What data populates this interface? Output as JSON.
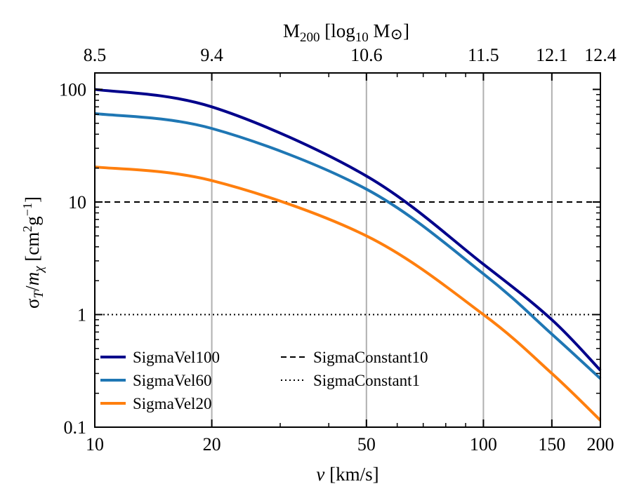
{
  "chart_data": {
    "type": "line",
    "x_scale": "log",
    "y_scale": "log",
    "xlim": [
      10,
      200
    ],
    "ylim": [
      0.1,
      140
    ],
    "xlabel": "v [km/s]",
    "ylabel": "σT/mχ [cm²g⁻¹]",
    "top_axis_label": "M200 [log10 M⊙]",
    "x_ticks": [
      {
        "value": 10,
        "label": "10"
      },
      {
        "value": 20,
        "label": "20"
      },
      {
        "value": 50,
        "label": "50"
      },
      {
        "value": 100,
        "label": "100"
      },
      {
        "value": 150,
        "label": "150"
      },
      {
        "value": 200,
        "label": "200"
      }
    ],
    "y_ticks": [
      {
        "value": 0.1,
        "label": "0.1"
      },
      {
        "value": 1,
        "label": "1"
      },
      {
        "value": 10,
        "label": "10"
      },
      {
        "value": 100,
        "label": "100"
      }
    ],
    "top_ticks": [
      {
        "x_value": 10,
        "label": "8.5"
      },
      {
        "x_value": 20,
        "label": "9.4"
      },
      {
        "x_value": 50,
        "label": "10.6"
      },
      {
        "x_value": 100,
        "label": "11.5"
      },
      {
        "x_value": 150,
        "label": "12.1"
      },
      {
        "x_value": 200,
        "label": "12.4"
      }
    ],
    "vertical_gridlines_at": [
      20,
      50,
      100,
      150
    ],
    "series": [
      {
        "name": "SigmaVel100",
        "color": "#00008b",
        "style": "solid",
        "x": [
          10,
          20,
          50,
          100,
          150,
          200
        ],
        "y": [
          100,
          70,
          17,
          2.8,
          0.9,
          0.32
        ]
      },
      {
        "name": "SigmaVel60",
        "color": "#1f77b4",
        "style": "solid",
        "x": [
          10,
          20,
          50,
          100,
          150,
          200
        ],
        "y": [
          61,
          45,
          13,
          2.3,
          0.67,
          0.27
        ]
      },
      {
        "name": "SigmaVel20",
        "color": "#ff7f0e",
        "style": "solid",
        "x": [
          10,
          20,
          50,
          100,
          150,
          200
        ],
        "y": [
          20.5,
          15.5,
          5.0,
          1.0,
          0.3,
          0.115
        ]
      },
      {
        "name": "SigmaConstant10",
        "color": "#000000",
        "style": "dashed",
        "x": [
          10,
          200
        ],
        "y": [
          10,
          10
        ]
      },
      {
        "name": "SigmaConstant1",
        "color": "#000000",
        "style": "dotted",
        "x": [
          10,
          200
        ],
        "y": [
          1,
          1
        ]
      }
    ],
    "legend": {
      "placement": "lower-left",
      "columns": 2,
      "entries": [
        "SigmaVel100",
        "SigmaVel60",
        "SigmaVel20",
        "SigmaConstant10",
        "SigmaConstant1"
      ]
    }
  }
}
